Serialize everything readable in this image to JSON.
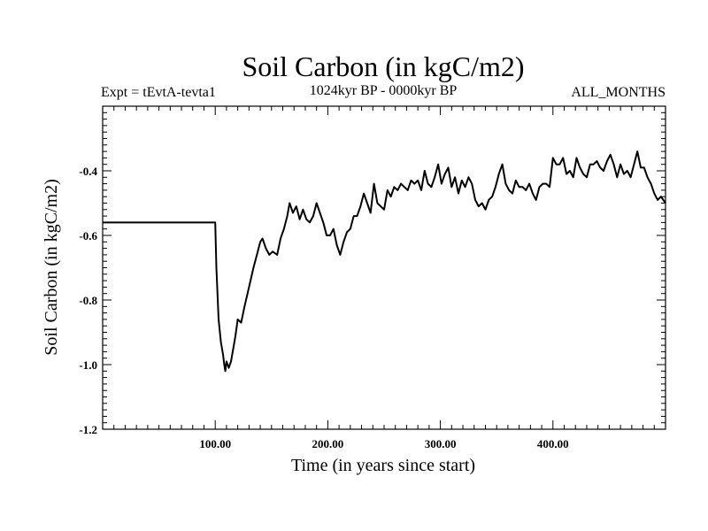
{
  "chart_data": {
    "type": "line",
    "title": "Soil Carbon (in kgC/m2)",
    "subtitle_left": "Expt = tEvtA-tevta1",
    "subtitle_center": "1024kyr BP - 0000kyr BP",
    "subtitle_right": "ALL_MONTHS",
    "xlabel": "Time (in years since start)",
    "ylabel": "Soil Carbon (in kgC/m2)",
    "xlim": [
      0,
      500
    ],
    "ylim": [
      -1.2,
      -0.2
    ],
    "xticks": [
      100,
      200,
      300,
      400
    ],
    "xtick_labels": [
      "100.00",
      "200.00",
      "300.00",
      "400.00"
    ],
    "yticks": [
      -1.2,
      -1.0,
      -0.8,
      -0.6,
      -0.4
    ],
    "ytick_labels": [
      "-1.2",
      "-1.0",
      "-0.8",
      "-0.6",
      "-0.4"
    ],
    "series": [
      {
        "name": "Soil Carbon",
        "color": "#000000",
        "x": [
          0,
          100,
          101,
          103,
          105,
          107,
          108,
          109,
          110,
          112,
          114,
          116,
          118,
          120,
          123,
          126,
          130,
          134,
          137,
          140,
          142,
          145,
          148,
          151,
          155,
          158,
          161,
          164,
          166,
          169,
          172,
          175,
          178,
          181,
          184,
          187,
          190,
          193,
          196,
          199,
          202,
          205,
          208,
          211,
          214,
          217,
          220,
          223,
          226,
          229,
          232,
          235,
          238,
          241,
          244,
          247,
          250,
          253,
          256,
          259,
          262,
          265,
          268,
          271,
          274,
          277,
          280,
          283,
          286,
          289,
          292,
          295,
          298,
          301,
          304,
          307,
          310,
          313,
          316,
          319,
          322,
          325,
          328,
          331,
          334,
          337,
          340,
          343,
          346,
          349,
          352,
          355,
          358,
          361,
          364,
          367,
          370,
          373,
          376,
          379,
          382,
          385,
          388,
          391,
          394,
          397,
          400,
          403,
          406,
          409,
          412,
          415,
          418,
          421,
          424,
          427,
          430,
          433,
          436,
          439,
          442,
          445,
          448,
          451,
          454,
          457,
          460,
          463,
          466,
          469,
          472,
          475,
          478,
          481,
          484,
          487,
          490,
          493,
          496,
          500
        ],
        "y": [
          -0.56,
          -0.56,
          -0.7,
          -0.86,
          -0.93,
          -0.97,
          -1.0,
          -1.02,
          -0.99,
          -1.01,
          -0.99,
          -0.95,
          -0.91,
          -0.86,
          -0.87,
          -0.82,
          -0.76,
          -0.7,
          -0.66,
          -0.62,
          -0.61,
          -0.64,
          -0.66,
          -0.65,
          -0.66,
          -0.61,
          -0.58,
          -0.54,
          -0.5,
          -0.53,
          -0.51,
          -0.55,
          -0.52,
          -0.55,
          -0.56,
          -0.54,
          -0.5,
          -0.53,
          -0.56,
          -0.6,
          -0.6,
          -0.58,
          -0.63,
          -0.66,
          -0.62,
          -0.59,
          -0.58,
          -0.54,
          -0.54,
          -0.51,
          -0.47,
          -0.5,
          -0.53,
          -0.44,
          -0.5,
          -0.51,
          -0.52,
          -0.46,
          -0.48,
          -0.45,
          -0.46,
          -0.44,
          -0.45,
          -0.46,
          -0.43,
          -0.44,
          -0.43,
          -0.46,
          -0.4,
          -0.44,
          -0.45,
          -0.42,
          -0.38,
          -0.44,
          -0.41,
          -0.39,
          -0.45,
          -0.42,
          -0.47,
          -0.43,
          -0.45,
          -0.42,
          -0.44,
          -0.49,
          -0.51,
          -0.5,
          -0.52,
          -0.49,
          -0.48,
          -0.45,
          -0.41,
          -0.38,
          -0.44,
          -0.46,
          -0.47,
          -0.43,
          -0.45,
          -0.45,
          -0.46,
          -0.44,
          -0.47,
          -0.49,
          -0.45,
          -0.44,
          -0.44,
          -0.45,
          -0.36,
          -0.38,
          -0.38,
          -0.36,
          -0.41,
          -0.4,
          -0.42,
          -0.36,
          -0.39,
          -0.41,
          -0.42,
          -0.38,
          -0.38,
          -0.37,
          -0.39,
          -0.4,
          -0.37,
          -0.35,
          -0.38,
          -0.42,
          -0.38,
          -0.41,
          -0.4,
          -0.42,
          -0.38,
          -0.34,
          -0.39,
          -0.39,
          -0.42,
          -0.44,
          -0.47,
          -0.49,
          -0.48,
          -0.5
        ]
      }
    ]
  }
}
